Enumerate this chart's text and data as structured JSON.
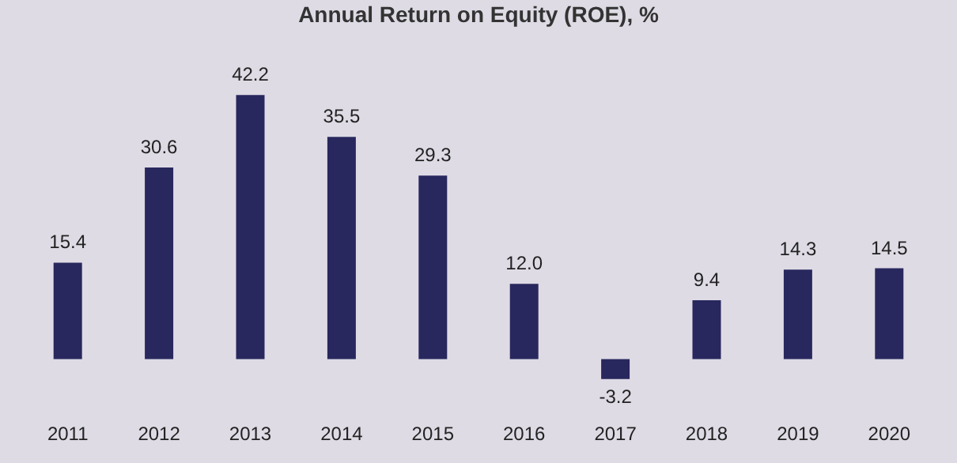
{
  "chart_data": {
    "type": "bar",
    "title": "Annual Return on Equity (ROE), %",
    "categories": [
      "2011",
      "2012",
      "2013",
      "2014",
      "2015",
      "2016",
      "2017",
      "2018",
      "2019",
      "2020"
    ],
    "values": [
      15.4,
      30.6,
      42.2,
      35.5,
      29.3,
      12.0,
      -3.2,
      9.4,
      14.3,
      14.5
    ],
    "value_labels": [
      "15.4",
      "30.6",
      "42.2",
      "35.5",
      "29.3",
      "12.0",
      "-3.2",
      "9.4",
      "14.3",
      "14.5"
    ],
    "color": "#28285e"
  }
}
